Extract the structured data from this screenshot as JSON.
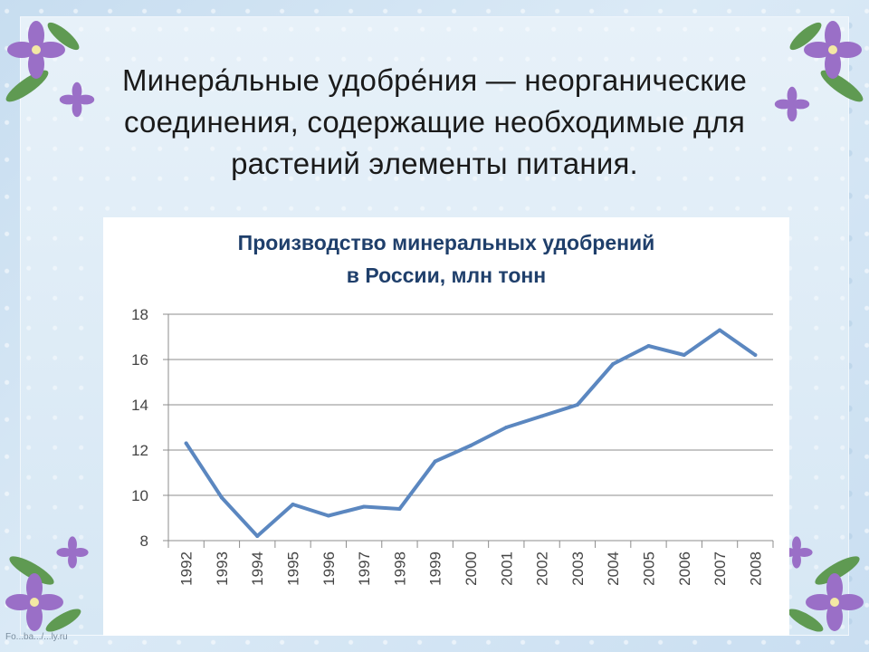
{
  "slide": {
    "title_lines": [
      "Минера́льные удобре́ния — неорганические",
      "соединения, содержащие необходимые для",
      "растений элементы питания."
    ],
    "watermark": "Fo...ba.../...ly.ru"
  },
  "colors": {
    "chart_title": "#1f3f6b",
    "series_line": "#5b87c0",
    "grid": "#8c8c8c",
    "axis_text": "#444444",
    "flower_petal": "#9a6fc7",
    "flower_leaf": "#5f9a52"
  },
  "chart_data": {
    "type": "line",
    "title_lines": [
      "Производство минеральных удобрений",
      "в России, млн тонн"
    ],
    "x": [
      "1992",
      "1993",
      "1994",
      "1995",
      "1996",
      "1997",
      "1998",
      "1999",
      "2000",
      "2001",
      "2002",
      "2003",
      "2004",
      "2005",
      "2006",
      "2007",
      "2008"
    ],
    "series": [
      {
        "values": [
          12.3,
          9.9,
          8.2,
          9.6,
          9.1,
          9.5,
          9.4,
          11.5,
          12.2,
          13.0,
          13.5,
          14.0,
          15.8,
          16.6,
          16.2,
          17.3,
          16.2
        ]
      }
    ],
    "y_ticks": [
      8,
      10,
      12,
      14,
      16,
      18
    ],
    "ylim": [
      8,
      18
    ],
    "grid": true,
    "legend": "none",
    "xlabel": "",
    "ylabel": ""
  }
}
